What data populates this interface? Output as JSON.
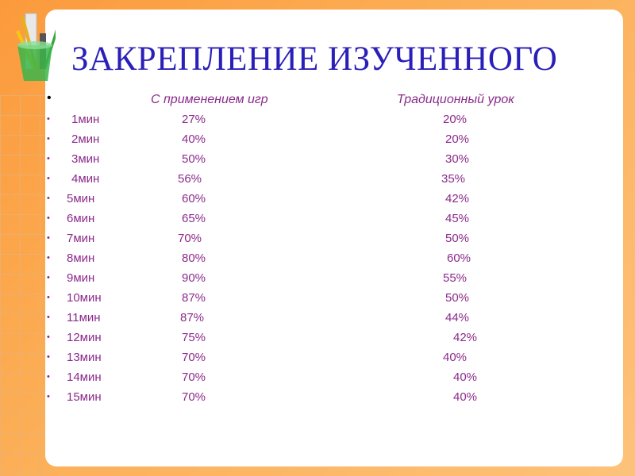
{
  "title": "ЗАКРЕПЛЕНИЕ ИЗУЧЕННОГО",
  "headers": {
    "games": "С применением игр",
    "traditional": "Традиционный урок"
  },
  "bullet": "•",
  "rows": [
    {
      "time": "1мин",
      "games": "27%",
      "traditional": "20%"
    },
    {
      "time": "2мин",
      "games": "40%",
      "traditional": "20%"
    },
    {
      "time": "3мин",
      "games": "50%",
      "traditional": "30%"
    },
    {
      "time": "4мин",
      "games": "56%",
      "traditional": "35%"
    },
    {
      "time": "5мин",
      "games": "60%",
      "traditional": "42%"
    },
    {
      "time": "6мин",
      "games": "65%",
      "traditional": "45%"
    },
    {
      "time": "7мин",
      "games": "70%",
      "traditional": "50%"
    },
    {
      "time": "8мин",
      "games": "80%",
      "traditional": "60%"
    },
    {
      "time": "9мин",
      "games": "90%",
      "traditional": "55%"
    },
    {
      "time": "10мин",
      "games": "87%",
      "traditional": "50%"
    },
    {
      "time": "11мин",
      "games": "87%",
      "traditional": "44%"
    },
    {
      "time": "12мин",
      "games": "75%",
      "traditional": "42%"
    },
    {
      "time": "13мин",
      "games": "70%",
      "traditional": "40%"
    },
    {
      "time": "14мин",
      "games": "70%",
      "traditional": "40%"
    },
    {
      "time": "15мин",
      "games": "70%",
      "traditional": "40%"
    }
  ],
  "colors": {
    "title": "#2a1fb8",
    "text": "#8b2a8b",
    "background": "#fb9a3c"
  }
}
